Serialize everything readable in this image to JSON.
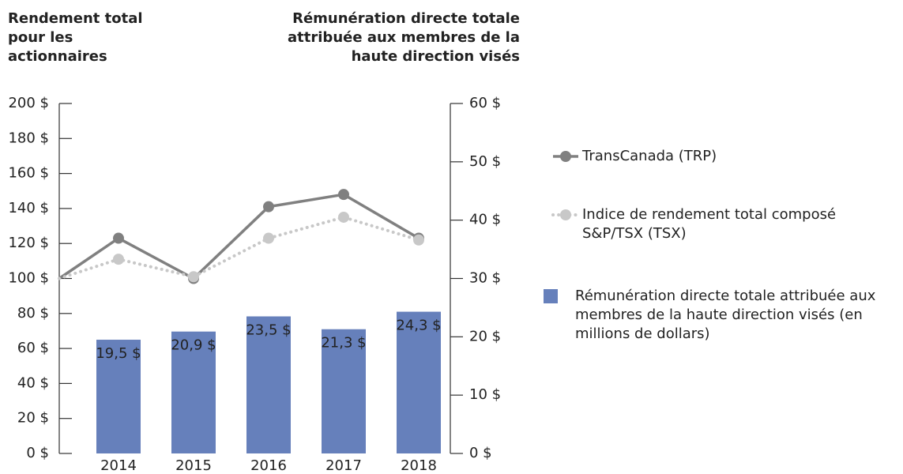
{
  "chart_data": {
    "type": "bar",
    "ylabel": "Rendement total pour les actionnaires",
    "y2label": "Rémunération directe totale attribuée aux membres de la haute direction visés",
    "categories": [
      null,
      "2014",
      "2015",
      "2016",
      "2017",
      "2018"
    ],
    "series": [
      {
        "name": "TransCanada (TRP)",
        "type": "line",
        "style": "solid",
        "color": "#808080",
        "values": [
          100,
          123,
          100,
          141,
          148,
          123
        ]
      },
      {
        "name": "Indice de rendement total composé S&P/TSX (TSX)",
        "type": "line",
        "style": "dotted",
        "color": "#c8c8c8",
        "values": [
          100,
          111,
          101,
          123,
          135,
          122
        ]
      },
      {
        "name": "Rémunération directe totale attribuée aux membres de la haute direction visés (en millions de dollars)",
        "type": "bar",
        "axis": "y2",
        "color": "#6680bb",
        "values": [
          null,
          19.5,
          20.9,
          23.5,
          21.3,
          24.3
        ],
        "value_labels": [
          null,
          "19,5 $",
          "20,9 $",
          "23,5 $",
          "21,3 $",
          "24,3 $"
        ]
      }
    ],
    "ylim": [
      0,
      200
    ],
    "yticks": [
      {
        "value": 0,
        "label": "0 $"
      },
      {
        "value": 20,
        "label": "20 $"
      },
      {
        "value": 40,
        "label": "40 $"
      },
      {
        "value": 60,
        "label": "60 $"
      },
      {
        "value": 80,
        "label": "80 $"
      },
      {
        "value": 100,
        "label": "100 $"
      },
      {
        "value": 120,
        "label": "120 $"
      },
      {
        "value": 140,
        "label": "140 $"
      },
      {
        "value": 160,
        "label": "160 $"
      },
      {
        "value": 180,
        "label": "180 $"
      },
      {
        "value": 200,
        "label": "200 $"
      }
    ],
    "y2lim": [
      0,
      60
    ],
    "y2ticks": [
      {
        "value": 0,
        "label": "0 $"
      },
      {
        "value": 10,
        "label": "10 $"
      },
      {
        "value": 20,
        "label": "20 $"
      },
      {
        "value": 30,
        "label": "30 $"
      },
      {
        "value": 40,
        "label": "40 $"
      },
      {
        "value": 50,
        "label": "50 $"
      },
      {
        "value": 60,
        "label": "60 $"
      }
    ],
    "legend": "right"
  }
}
